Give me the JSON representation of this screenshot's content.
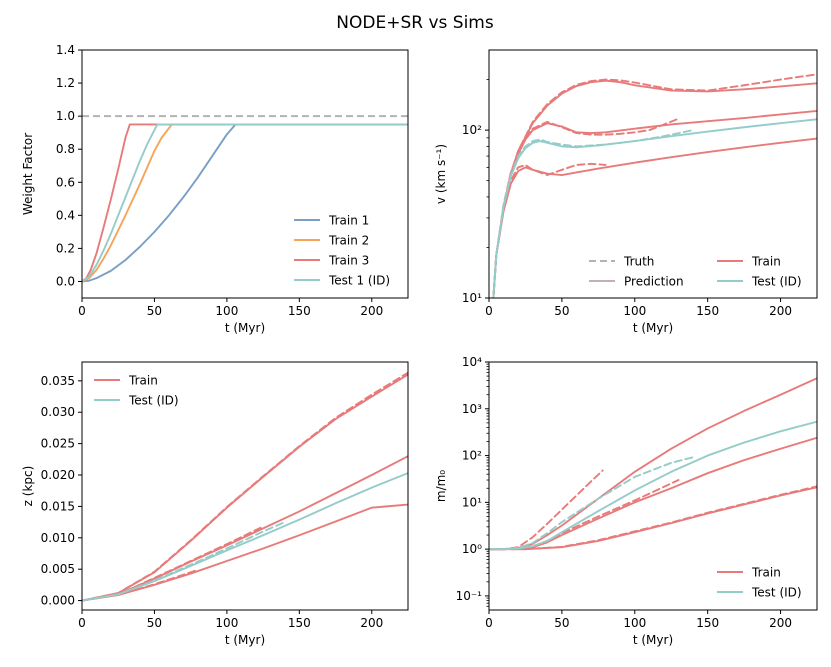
{
  "figure": {
    "suptitle": "NODE+SR vs Sims"
  },
  "colors": {
    "train1": "#7a9fc4",
    "train2": "#f5a55a",
    "train": "#e87a7a",
    "test": "#94ccc9",
    "ref": "#b3b3b3",
    "pred": "#c4b0b0"
  },
  "chart_data": [
    {
      "id": "weight",
      "type": "line",
      "xlabel": "t (Myr)",
      "ylabel": "Weight Factor",
      "xlim": [
        0,
        225
      ],
      "ylim": [
        -0.1,
        1.4
      ],
      "xticks": [
        0,
        50,
        100,
        150,
        200
      ],
      "yticks": [
        0.0,
        0.2,
        0.4,
        0.6,
        0.8,
        1.0,
        1.2,
        1.4
      ],
      "ytick_labels": [
        "0.0",
        "0.2",
        "0.4",
        "0.6",
        "0.8",
        "1.0",
        "1.2",
        "1.4"
      ],
      "legend_position": "lower-right",
      "reference_line": {
        "y": 1.0,
        "style": "dashed",
        "color": "ref"
      },
      "series": [
        {
          "name": "Train 1",
          "color": "train1",
          "x": [
            0,
            5,
            10,
            20,
            30,
            40,
            50,
            60,
            70,
            80,
            90,
            100,
            106,
            225
          ],
          "y": [
            0,
            0.005,
            0.02,
            0.065,
            0.13,
            0.21,
            0.3,
            0.4,
            0.51,
            0.63,
            0.76,
            0.89,
            0.95,
            0.95
          ]
        },
        {
          "name": "Train 2",
          "color": "train2",
          "x": [
            0,
            5,
            10,
            15,
            20,
            30,
            40,
            50,
            55,
            62,
            225
          ],
          "y": [
            0,
            0.02,
            0.07,
            0.14,
            0.22,
            0.4,
            0.59,
            0.79,
            0.87,
            0.95,
            0.95
          ]
        },
        {
          "name": "Train 3",
          "color": "train",
          "x": [
            0,
            3,
            6,
            10,
            15,
            20,
            25,
            30,
            33,
            225
          ],
          "y": [
            0,
            0.02,
            0.07,
            0.17,
            0.33,
            0.5,
            0.68,
            0.87,
            0.95,
            0.95
          ]
        },
        {
          "name": "Test 1 (ID)",
          "color": "test",
          "x": [
            0,
            5,
            10,
            15,
            20,
            25,
            30,
            35,
            40,
            45,
            52,
            225
          ],
          "y": [
            0,
            0.03,
            0.1,
            0.19,
            0.29,
            0.4,
            0.51,
            0.62,
            0.73,
            0.83,
            0.95,
            0.95
          ]
        }
      ]
    },
    {
      "id": "velocity",
      "type": "line",
      "yscale": "log",
      "xlabel": "t (Myr)",
      "ylabel": "v (km s⁻¹)",
      "xlim": [
        0,
        225
      ],
      "ylim": [
        10,
        300
      ],
      "xticks": [
        0,
        50,
        100,
        150,
        200
      ],
      "yticks_major": [
        10,
        100
      ],
      "ytick_labels": [
        "10¹",
        "10²"
      ],
      "legend_position": "lower-right",
      "legend": [
        {
          "label": "Truth",
          "style": "dashed",
          "color": "ref"
        },
        {
          "label": "Train",
          "style": "solid",
          "color": "train"
        },
        {
          "label": "Prediction",
          "style": "solid",
          "color": "pred"
        },
        {
          "label": "Test (ID)",
          "style": "solid",
          "color": "test"
        }
      ],
      "series": [
        {
          "name": "Train pred A",
          "color": "train",
          "style": "solid",
          "x": [
            3,
            5,
            10,
            15,
            20,
            30,
            40,
            50,
            60,
            70,
            80,
            90,
            100,
            125,
            150,
            175,
            200,
            225
          ],
          "y": [
            10,
            18,
            35,
            55,
            75,
            110,
            140,
            165,
            183,
            193,
            197,
            193,
            185,
            172,
            170,
            175,
            182,
            190
          ]
        },
        {
          "name": "Train truth A",
          "color": "train",
          "style": "dashed",
          "x": [
            3,
            5,
            10,
            15,
            20,
            30,
            40,
            50,
            60,
            70,
            80,
            90,
            100,
            125,
            150,
            175,
            200,
            225
          ],
          "y": [
            10,
            18,
            35,
            55,
            75,
            112,
            143,
            168,
            186,
            196,
            200,
            198,
            192,
            175,
            172,
            185,
            200,
            215
          ]
        },
        {
          "name": "Train pred B",
          "color": "train",
          "style": "solid",
          "x": [
            3,
            5,
            10,
            15,
            20,
            25,
            30,
            40,
            50,
            60,
            70,
            80,
            100,
            125,
            150,
            175,
            200,
            225
          ],
          "y": [
            10,
            18,
            35,
            55,
            72,
            88,
            100,
            110,
            105,
            97,
            96,
            97,
            102,
            108,
            113,
            118,
            124,
            130
          ]
        },
        {
          "name": "Train truth B",
          "color": "train",
          "style": "dashed",
          "x": [
            3,
            5,
            10,
            15,
            20,
            25,
            30,
            40,
            50,
            60,
            70,
            80,
            90,
            100,
            110,
            120,
            130
          ],
          "y": [
            10,
            18,
            36,
            56,
            73,
            90,
            102,
            112,
            104,
            96,
            94,
            94,
            95,
            97,
            100,
            108,
            117
          ]
        },
        {
          "name": "Train pred C",
          "color": "train",
          "style": "solid",
          "x": [
            3,
            5,
            10,
            15,
            20,
            25,
            30,
            40,
            50,
            60,
            75,
            100,
            125,
            150,
            175,
            200,
            225
          ],
          "y": [
            10,
            18,
            33,
            48,
            57,
            60,
            58,
            55,
            54,
            56,
            59,
            64,
            69,
            74,
            79,
            84,
            89
          ]
        },
        {
          "name": "Train truth C",
          "color": "train",
          "style": "dashed",
          "x": [
            3,
            5,
            10,
            15,
            20,
            25,
            30,
            40,
            50,
            60,
            70,
            80
          ],
          "y": [
            10,
            18,
            34,
            50,
            60,
            62,
            58,
            54,
            58,
            62,
            63,
            62
          ]
        },
        {
          "name": "Test pred",
          "color": "test",
          "style": "solid",
          "x": [
            3,
            5,
            10,
            15,
            20,
            25,
            30,
            35,
            40,
            50,
            60,
            75,
            100,
            125,
            150,
            175,
            200,
            225
          ],
          "y": [
            10,
            18,
            35,
            53,
            68,
            78,
            84,
            86,
            84,
            80,
            79,
            81,
            86,
            92,
            98,
            104,
            110,
            116
          ]
        },
        {
          "name": "Test truth",
          "color": "test",
          "style": "dashed",
          "x": [
            3,
            5,
            10,
            15,
            20,
            25,
            30,
            35,
            40,
            50,
            60,
            80,
            100,
            120,
            140
          ],
          "y": [
            10,
            18,
            36,
            54,
            70,
            80,
            86,
            88,
            85,
            82,
            80,
            82,
            86,
            92,
            100
          ]
        }
      ]
    },
    {
      "id": "height",
      "type": "line",
      "xlabel": "t (Myr)",
      "ylabel": "z (kpc)",
      "xlim": [
        0,
        225
      ],
      "ylim": [
        -0.0015,
        0.038
      ],
      "xticks": [
        0,
        50,
        100,
        150,
        200
      ],
      "yticks": [
        0.0,
        0.005,
        0.01,
        0.015,
        0.02,
        0.025,
        0.03,
        0.035
      ],
      "ytick_labels": [
        "0.000",
        "0.005",
        "0.010",
        "0.015",
        "0.020",
        "0.025",
        "0.030",
        "0.035"
      ],
      "legend_position": "upper-left",
      "legend": [
        {
          "label": "Train",
          "style": "solid",
          "color": "train"
        },
        {
          "label": "Test (ID)",
          "style": "solid",
          "color": "test"
        }
      ],
      "series": [
        {
          "name": "Train A",
          "color": "train",
          "style": "solid",
          "x": [
            0,
            25,
            50,
            75,
            100,
            125,
            150,
            175,
            200,
            225
          ],
          "y": [
            0,
            0.0012,
            0.0045,
            0.0095,
            0.0148,
            0.0197,
            0.0245,
            0.0289,
            0.0325,
            0.036
          ]
        },
        {
          "name": "Train A truth",
          "color": "train",
          "style": "dashed",
          "x": [
            0,
            25,
            50,
            75,
            100,
            125,
            150,
            175,
            200,
            225
          ],
          "y": [
            0,
            0.0012,
            0.0046,
            0.0096,
            0.0149,
            0.0198,
            0.0246,
            0.0291,
            0.0328,
            0.0363
          ]
        },
        {
          "name": "Train B",
          "color": "train",
          "style": "solid",
          "x": [
            0,
            25,
            50,
            75,
            100,
            125,
            150,
            175,
            200,
            225
          ],
          "y": [
            0,
            0.001,
            0.0035,
            0.0062,
            0.0088,
            0.0115,
            0.0142,
            0.0171,
            0.02,
            0.023
          ]
        },
        {
          "name": "Train B truth",
          "color": "train",
          "style": "dashed",
          "x": [
            0,
            25,
            50,
            75,
            100,
            125
          ],
          "y": [
            0,
            0.001,
            0.0036,
            0.0063,
            0.009,
            0.0118
          ]
        },
        {
          "name": "Train C",
          "color": "train",
          "style": "solid",
          "x": [
            0,
            25,
            50,
            75,
            100,
            125,
            150,
            175,
            200,
            225
          ],
          "y": [
            0,
            0.0009,
            0.0025,
            0.0043,
            0.0063,
            0.0083,
            0.0104,
            0.0126,
            0.0148,
            0.0153
          ]
        },
        {
          "name": "Train C truth",
          "color": "train",
          "style": "dashed",
          "x": [
            0,
            25,
            50,
            75,
            80
          ],
          "y": [
            0,
            0.0009,
            0.0026,
            0.0045,
            0.0049
          ]
        },
        {
          "name": "Test",
          "color": "test",
          "style": "solid",
          "x": [
            0,
            25,
            50,
            75,
            100,
            125,
            150,
            175,
            200,
            225
          ],
          "y": [
            0,
            0.001,
            0.0031,
            0.0055,
            0.008,
            0.0104,
            0.0129,
            0.0155,
            0.018,
            0.0203
          ]
        },
        {
          "name": "Test truth",
          "color": "test",
          "style": "dashed",
          "x": [
            0,
            25,
            50,
            75,
            100,
            125,
            140
          ],
          "y": [
            0,
            0.001,
            0.0032,
            0.0057,
            0.0083,
            0.011,
            0.0125
          ]
        }
      ]
    },
    {
      "id": "mass",
      "type": "line",
      "yscale": "log",
      "xlabel": "t (Myr)",
      "ylabel": "m/m₀",
      "xlim": [
        0,
        225
      ],
      "ylim": [
        0.05,
        10000
      ],
      "xticks": [
        0,
        50,
        100,
        150,
        200
      ],
      "yticks_major": [
        0.1,
        1,
        10,
        100,
        1000,
        10000
      ],
      "ytick_labels": [
        "10⁻¹",
        "10⁰",
        "10¹",
        "10²",
        "10³",
        "10⁴"
      ],
      "legend_position": "lower-right",
      "legend": [
        {
          "label": "Train",
          "style": "solid",
          "color": "train"
        },
        {
          "label": "Test (ID)",
          "style": "solid",
          "color": "test"
        }
      ],
      "series": [
        {
          "name": "Train A",
          "color": "train",
          "style": "solid",
          "x": [
            0,
            10,
            20,
            30,
            40,
            50,
            75,
            100,
            125,
            150,
            175,
            200,
            225
          ],
          "y": [
            1,
            1,
            1.05,
            1.3,
            2.0,
            3.2,
            12,
            45,
            140,
            380,
            900,
            2000,
            4500
          ]
        },
        {
          "name": "Train A truth",
          "color": "train",
          "style": "dashed",
          "x": [
            0,
            10,
            20,
            30,
            40,
            50,
            60,
            70,
            78
          ],
          "y": [
            1,
            1,
            1.1,
            1.8,
            3.5,
            7,
            14,
            28,
            48
          ]
        },
        {
          "name": "Train B",
          "color": "train",
          "style": "solid",
          "x": [
            0,
            10,
            20,
            30,
            40,
            50,
            75,
            100,
            125,
            150,
            175,
            200,
            225
          ],
          "y": [
            1,
            1,
            1.02,
            1.1,
            1.4,
            2.0,
            4.5,
            10,
            20,
            42,
            80,
            140,
            240
          ]
        },
        {
          "name": "Train B truth",
          "color": "train",
          "style": "dashed",
          "x": [
            0,
            10,
            20,
            30,
            40,
            50,
            75,
            100,
            130
          ],
          "y": [
            1,
            1,
            1.03,
            1.15,
            1.5,
            2.2,
            5,
            11,
            30
          ]
        },
        {
          "name": "Train C",
          "color": "train",
          "style": "solid",
          "x": [
            0,
            25,
            50,
            75,
            100,
            125,
            150,
            175,
            200,
            225
          ],
          "y": [
            1,
            1,
            1.1,
            1.5,
            2.3,
            3.6,
            5.8,
            9,
            14,
            21
          ]
        },
        {
          "name": "Train C truth",
          "color": "train",
          "style": "dashed",
          "x": [
            0,
            25,
            50,
            75,
            100,
            125,
            150,
            175,
            200,
            225
          ],
          "y": [
            1,
            1,
            1.12,
            1.55,
            2.4,
            3.7,
            6,
            9.3,
            14.5,
            22
          ]
        },
        {
          "name": "Test",
          "color": "test",
          "style": "solid",
          "x": [
            0,
            10,
            20,
            30,
            40,
            50,
            75,
            100,
            125,
            150,
            175,
            200,
            225
          ],
          "y": [
            1,
            1,
            1.03,
            1.15,
            1.5,
            2.3,
            6.5,
            18,
            45,
            100,
            190,
            330,
            530
          ]
        },
        {
          "name": "Test truth",
          "color": "test",
          "style": "dashed",
          "x": [
            0,
            10,
            20,
            30,
            40,
            50,
            75,
            100,
            125,
            140
          ],
          "y": [
            1,
            1,
            1.06,
            1.35,
            2.2,
            3.8,
            12,
            35,
            70,
            92
          ]
        }
      ]
    }
  ]
}
